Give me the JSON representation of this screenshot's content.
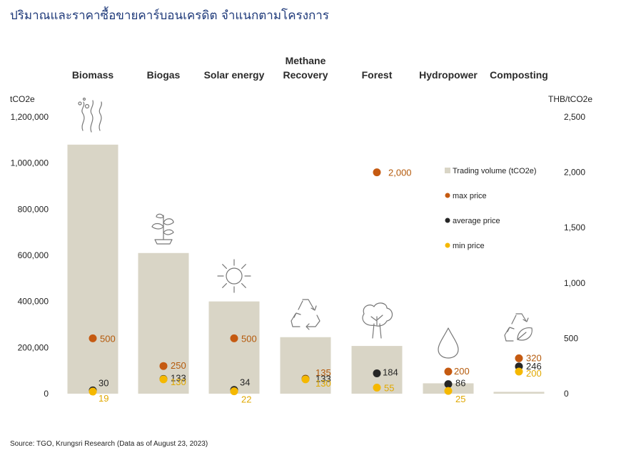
{
  "title": "ปริมาณและราคาซื้อขายคาร์บอนเครดิต จำแนกตามโครงการ",
  "source": "Source: TGO, Krungsri Research (Data as of August 23, 2023)",
  "colors": {
    "bar": "#d9d5c6",
    "max": "#c55a11",
    "avg": "#262626",
    "min": "#f5b800",
    "min_label": "#e0a800",
    "max_label": "#b4590a",
    "title": "#1f3a7a"
  },
  "chart_data": {
    "type": "bar",
    "title": "ปริมาณและราคาซื้อขายคาร์บอนเครดิต จำแนกตามโครงการ",
    "categories": [
      [
        "Biomass"
      ],
      [
        "Biogas"
      ],
      [
        "Solar energy"
      ],
      [
        "Methane",
        "Recovery"
      ],
      [
        "Forest"
      ],
      [
        "Hydropower"
      ],
      [
        "Composting"
      ]
    ],
    "icons": [
      "biomass-icon",
      "biogas-icon",
      "solar-icon",
      "recycle-icon",
      "tree-icon",
      "water-drop-icon",
      "compost-icon"
    ],
    "left_axis": {
      "unit": "tCO2e",
      "ylim": [
        0,
        1200000
      ],
      "ticks": [
        0,
        200000,
        400000,
        600000,
        800000,
        1000000,
        1200000
      ],
      "tick_labels": [
        "0",
        "200,000",
        "400,000",
        "600,000",
        "800,000",
        "1,000,000",
        "1,200,000"
      ]
    },
    "right_axis": {
      "unit": "THB/tCO2e",
      "ylim": [
        0,
        2500
      ],
      "ticks": [
        0,
        500,
        1000,
        1500,
        2000,
        2500
      ],
      "tick_labels": [
        "0",
        "500",
        "1,000",
        "1,500",
        "2,000",
        "2,500"
      ]
    },
    "series": [
      {
        "name": "Trading volume (tCO2e)",
        "type": "bar",
        "axis": "left",
        "values": [
          1080000,
          610000,
          400000,
          245000,
          207000,
          45000,
          8000
        ]
      },
      {
        "name": "max price",
        "type": "scatter",
        "axis": "right",
        "values": [
          500,
          250,
          500,
          135,
          2000,
          200,
          320
        ],
        "labels": [
          "500",
          "250",
          "500",
          "135",
          "2,000",
          "200",
          "320"
        ]
      },
      {
        "name": "average price",
        "type": "scatter",
        "axis": "right",
        "values": [
          30,
          133,
          34,
          133,
          184,
          86,
          246
        ],
        "labels": [
          "30",
          "133",
          "34",
          "133",
          "184",
          "86",
          "246"
        ]
      },
      {
        "name": "min price",
        "type": "scatter",
        "axis": "right",
        "values": [
          19,
          130,
          22,
          130,
          55,
          25,
          200
        ],
        "labels": [
          "19",
          "130",
          "22",
          "130",
          "55",
          "25",
          "200"
        ]
      }
    ],
    "legend_position": "right"
  }
}
